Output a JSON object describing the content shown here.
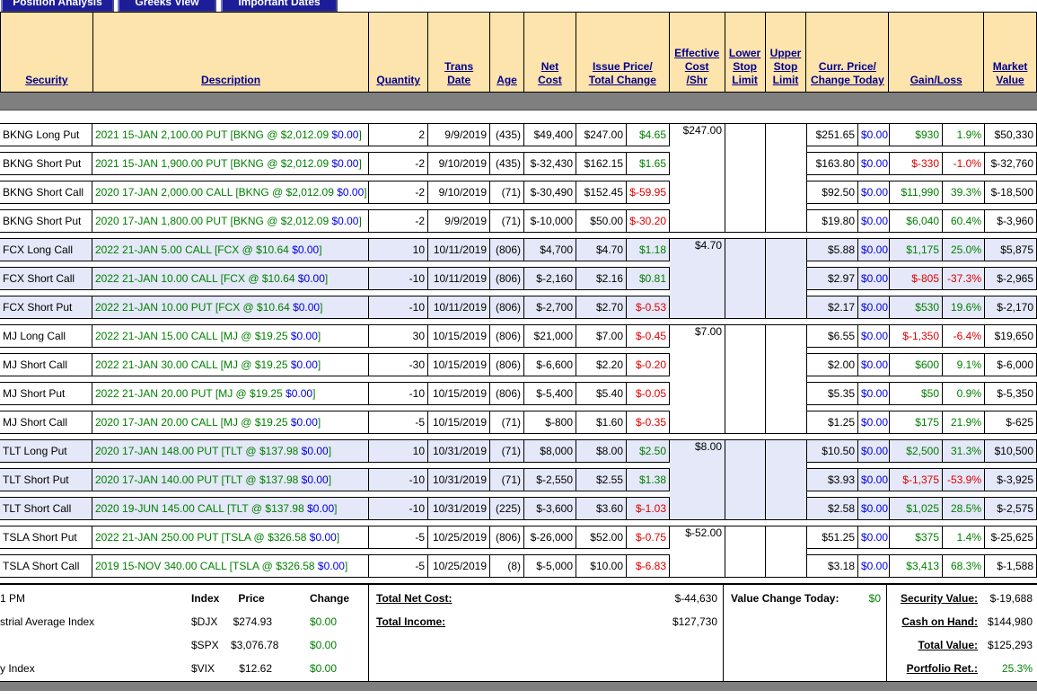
{
  "colors": {
    "tab_bg": "#1d1d99",
    "header_bg": "#fde3ac",
    "gray_bar": "#7f7f7f",
    "alt_group_bg": "#e4e8f8",
    "positive": "#008000",
    "negative": "#e00000",
    "change_blue": "#0000dd",
    "header_link": "#00008b"
  },
  "tabs": [
    "Position Analysis",
    "Greeks View",
    "Important Dates"
  ],
  "table": {
    "headers": {
      "security": "Security",
      "description": "Description",
      "quantity": "Quantity",
      "trans_date": [
        "Trans",
        "Date"
      ],
      "age": "Age",
      "net_cost": [
        "Net",
        "Cost"
      ],
      "issue_price_total_change": [
        "Issue Price/",
        "Total Change"
      ],
      "effective_cost": [
        "Effective",
        "Cost",
        "/Shr"
      ],
      "lower_stop": [
        "Lower",
        "Stop",
        "Limit"
      ],
      "upper_stop": [
        "Upper",
        "Stop",
        "Limit"
      ],
      "curr_price_change_today": [
        "Curr. Price/",
        "Change Today"
      ],
      "gain_loss": "Gain/Loss",
      "market_value": [
        "Market",
        "Value"
      ]
    },
    "groups": [
      {
        "ticker": "BKNG",
        "shade": "plain",
        "effective_cost": "$247.00",
        "rows": [
          {
            "security": "BKNG Long Put",
            "desc": "2021 15-JAN 2,100.00 PUT [BKNG @ $2,012.09",
            "desc_change": "$0.00",
            "qty": "2",
            "date": "9/9/2019",
            "age": "(435)",
            "net": "$49,400",
            "issue": "$247.00",
            "change": "$4.65",
            "curr": "$251.65",
            "today": "$0.00",
            "gain": "$930",
            "pct": "1.9%",
            "mkt": "$50,330"
          },
          {
            "security": "BKNG Short Put",
            "desc": "2021 15-JAN 1,900.00 PUT [BKNG @ $2,012.09",
            "desc_change": "$0.00",
            "qty": "-2",
            "date": "9/10/2019",
            "age": "(435)",
            "net": "$-32,430",
            "issue": "$162.15",
            "change": "$1.65",
            "curr": "$163.80",
            "today": "$0.00",
            "gain": "$-330",
            "pct": "-1.0%",
            "mkt": "$-32,760"
          },
          {
            "security": "BKNG Short Call",
            "desc": "2020 17-JAN 2,000.00 CALL [BKNG @ $2,012.09",
            "desc_change": "$0.00",
            "qty": "-2",
            "date": "9/10/2019",
            "age": "(71)",
            "net": "$-30,490",
            "issue": "$152.45",
            "change": "$-59.95",
            "curr": "$92.50",
            "today": "$0.00",
            "gain": "$11,990",
            "pct": "39.3%",
            "mkt": "$-18,500"
          },
          {
            "security": "BKNG Short Put",
            "desc": "2020 17-JAN 1,800.00 PUT [BKNG @ $2,012.09",
            "desc_change": "$0.00",
            "qty": "-2",
            "date": "9/9/2019",
            "age": "(71)",
            "net": "$-10,000",
            "issue": "$50.00",
            "change": "$-30.20",
            "curr": "$19.80",
            "today": "$0.00",
            "gain": "$6,040",
            "pct": "60.4%",
            "mkt": "$-3,960"
          }
        ]
      },
      {
        "ticker": "FCX",
        "shade": "blue",
        "effective_cost": "$4.70",
        "rows": [
          {
            "security": "FCX Long Call",
            "desc": "2022 21-JAN 5.00 CALL [FCX @ $10.64",
            "desc_change": "$0.00",
            "qty": "10",
            "date": "10/11/2019",
            "age": "(806)",
            "net": "$4,700",
            "issue": "$4.70",
            "change": "$1.18",
            "curr": "$5.88",
            "today": "$0.00",
            "gain": "$1,175",
            "pct": "25.0%",
            "mkt": "$5,875"
          },
          {
            "security": "FCX Short Call",
            "desc": "2022 21-JAN 10.00 CALL [FCX @ $10.64",
            "desc_change": "$0.00",
            "qty": "-10",
            "date": "10/11/2019",
            "age": "(806)",
            "net": "$-2,160",
            "issue": "$2.16",
            "change": "$0.81",
            "curr": "$2.97",
            "today": "$0.00",
            "gain": "$-805",
            "pct": "-37.3%",
            "mkt": "$-2,965"
          },
          {
            "security": "FCX Short Put",
            "desc": "2022 21-JAN 10.00 PUT [FCX @ $10.64",
            "desc_change": "$0.00",
            "qty": "-10",
            "date": "10/11/2019",
            "age": "(806)",
            "net": "$-2,700",
            "issue": "$2.70",
            "change": "$-0.53",
            "curr": "$2.17",
            "today": "$0.00",
            "gain": "$530",
            "pct": "19.6%",
            "mkt": "$-2,170"
          }
        ]
      },
      {
        "ticker": "MJ",
        "shade": "plain",
        "effective_cost": "$7.00",
        "rows": [
          {
            "security": "MJ Long Call",
            "desc": "2022 21-JAN 15.00 CALL [MJ @ $19.25",
            "desc_change": "$0.00",
            "qty": "30",
            "date": "10/15/2019",
            "age": "(806)",
            "net": "$21,000",
            "issue": "$7.00",
            "change": "$-0.45",
            "curr": "$6.55",
            "today": "$0.00",
            "gain": "$-1,350",
            "pct": "-6.4%",
            "mkt": "$19,650"
          },
          {
            "security": "MJ Short Call",
            "desc": "2022 21-JAN 30.00 CALL [MJ @ $19.25",
            "desc_change": "$0.00",
            "qty": "-30",
            "date": "10/15/2019",
            "age": "(806)",
            "net": "$-6,600",
            "issue": "$2.20",
            "change": "$-0.20",
            "curr": "$2.00",
            "today": "$0.00",
            "gain": "$600",
            "pct": "9.1%",
            "mkt": "$-6,000"
          },
          {
            "security": "MJ Short Put",
            "desc": "2022 21-JAN 20.00 PUT [MJ @ $19.25",
            "desc_change": "$0.00",
            "qty": "-10",
            "date": "10/15/2019",
            "age": "(806)",
            "net": "$-5,400",
            "issue": "$5.40",
            "change": "$-0.05",
            "curr": "$5.35",
            "today": "$0.00",
            "gain": "$50",
            "pct": "0.9%",
            "mkt": "$-5,350"
          },
          {
            "security": "MJ Short Call",
            "desc": "2020 17-JAN 20.00 CALL [MJ @ $19.25",
            "desc_change": "$0.00",
            "qty": "-5",
            "date": "10/15/2019",
            "age": "(71)",
            "net": "$-800",
            "issue": "$1.60",
            "change": "$-0.35",
            "curr": "$1.25",
            "today": "$0.00",
            "gain": "$175",
            "pct": "21.9%",
            "mkt": "$-625"
          }
        ]
      },
      {
        "ticker": "TLT",
        "shade": "blue",
        "effective_cost": "$8.00",
        "rows": [
          {
            "security": "TLT Long Put",
            "desc": "2020 17-JAN 148.00 PUT [TLT @ $137.98",
            "desc_change": "$0.00",
            "qty": "10",
            "date": "10/31/2019",
            "age": "(71)",
            "net": "$8,000",
            "issue": "$8.00",
            "change": "$2.50",
            "curr": "$10.50",
            "today": "$0.00",
            "gain": "$2,500",
            "pct": "31.3%",
            "mkt": "$10,500"
          },
          {
            "security": "TLT Short Put",
            "desc": "2020 17-JAN 140.00 PUT [TLT @ $137.98",
            "desc_change": "$0.00",
            "qty": "-10",
            "date": "10/31/2019",
            "age": "(71)",
            "net": "$-2,550",
            "issue": "$2.55",
            "change": "$1.38",
            "curr": "$3.93",
            "today": "$0.00",
            "gain": "$-1,375",
            "pct": "-53.9%",
            "mkt": "$-3,925"
          },
          {
            "security": "TLT Short Call",
            "desc": "2020 19-JUN 145.00 CALL [TLT @ $137.98",
            "desc_change": "$0.00",
            "qty": "-10",
            "date": "10/31/2019",
            "age": "(225)",
            "net": "$-3,600",
            "issue": "$3.60",
            "change": "$-1.03",
            "curr": "$2.58",
            "today": "$0.00",
            "gain": "$1,025",
            "pct": "28.5%",
            "mkt": "$-2,575"
          }
        ]
      },
      {
        "ticker": "TSLA",
        "shade": "plain",
        "effective_cost": "$-52.00",
        "rows": [
          {
            "security": "TSLA Short Put",
            "desc": "2022 21-JAN 250.00 PUT [TSLA @ $326.58",
            "desc_change": "$0.00",
            "qty": "-5",
            "date": "10/25/2019",
            "age": "(806)",
            "net": "$-26,000",
            "issue": "$52.00",
            "change": "$-0.75",
            "curr": "$51.25",
            "today": "$0.00",
            "gain": "$375",
            "pct": "1.4%",
            "mkt": "$-25,625"
          },
          {
            "security": "TSLA Short Call",
            "desc": "2019 15-NOV 340.00 CALL [TSLA @ $326.58",
            "desc_change": "$0.00",
            "qty": "-5",
            "date": "10/25/2019",
            "age": "(8)",
            "net": "$-5,000",
            "issue": "$10.00",
            "change": "$-6.83",
            "curr": "$3.18",
            "today": "$0.00",
            "gain": "$3,413",
            "pct": "68.3%",
            "mkt": "$-1,588"
          }
        ]
      }
    ]
  },
  "footer": {
    "time": "1 PM",
    "index_table": {
      "headers": {
        "index": "Index",
        "price": "Price",
        "change": "Change"
      },
      "rows": [
        {
          "label": "strial Average Index",
          "symbol": "$DJX",
          "price": "$274.93",
          "change": "$0.00"
        },
        {
          "label": "",
          "symbol": "$SPX",
          "price": "$3,076.78",
          "change": "$0.00"
        },
        {
          "label": "y Index",
          "symbol": "$VIX",
          "price": "$12.62",
          "change": "$0.00"
        }
      ]
    },
    "totals": {
      "net_cost_label": "Total Net Cost:",
      "net_cost": "$-44,630",
      "income_label": "Total Income:",
      "income": "$127,730"
    },
    "value_change": {
      "label": "Value Change Today:",
      "value": "$0"
    },
    "summary": [
      {
        "label": "Security Value:",
        "value": "$-19,688"
      },
      {
        "label": "Cash on Hand:",
        "value": "$144,980"
      },
      {
        "label": "Total Value:",
        "value": "$125,293"
      },
      {
        "label": "Portfolio Ret.:",
        "value": "25.3%"
      }
    ]
  }
}
